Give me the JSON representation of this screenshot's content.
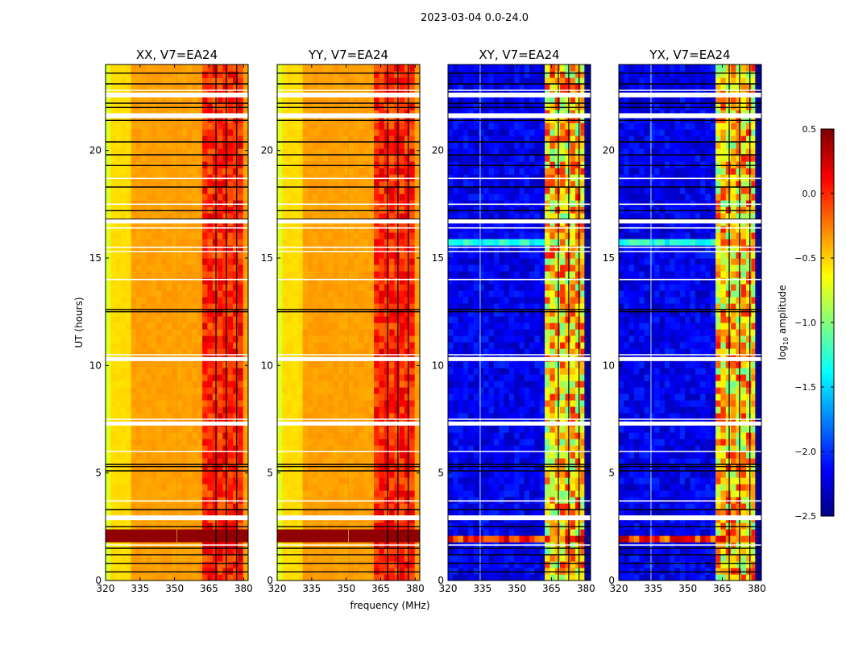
{
  "chart_data": {
    "type": "heatmap",
    "suptitle": "2023-03-04 0.0-24.0",
    "xlabel": "frequency (MHz)",
    "ylabel": "UT (hours)",
    "xlim": [
      320,
      382
    ],
    "ylim": [
      0,
      24
    ],
    "xticks": [
      320,
      335,
      350,
      365,
      380
    ],
    "yticks": [
      0,
      5,
      10,
      15,
      20
    ],
    "panels": [
      {
        "title": "XX, V7=EA24",
        "kind": "parallel"
      },
      {
        "title": "YY, V7=EA24",
        "kind": "parallel"
      },
      {
        "title": "XY, V7=EA24",
        "kind": "cross"
      },
      {
        "title": "YX, V7=EA24",
        "kind": "cross"
      }
    ],
    "colorbar": {
      "label": "log10 amplitude",
      "label_main": "log",
      "label_sub": "10",
      "label_rest": " amplitude",
      "vmin": -2.5,
      "vmax": 0.5,
      "ticks": [
        0.5,
        0.0,
        -0.5,
        -1.0,
        -1.5,
        -2.0,
        -2.5
      ],
      "tick_labels": [
        "0.5",
        "0.0",
        "−0.5",
        "−1.0",
        "−1.5",
        "−2.0",
        "−2.5"
      ],
      "colormap": "jet"
    },
    "rfi_band_mhz": [
      362,
      379
    ],
    "gap_hours": [
      2.9,
      7.3,
      10.3,
      16.7,
      21.6,
      22.6
    ]
  }
}
